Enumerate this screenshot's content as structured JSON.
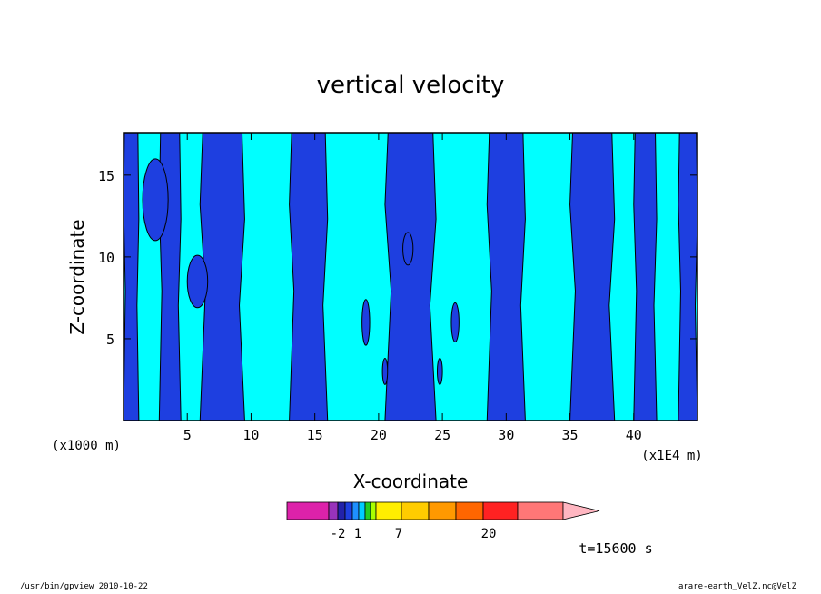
{
  "chart_data": {
    "type": "heatmap",
    "title": "vertical velocity",
    "xlabel": "X-coordinate",
    "ylabel": "Z-coordinate",
    "x_unit_left": "(x1000 m)",
    "x_unit_right": "(x1E4 m)",
    "xlim": [
      0,
      45
    ],
    "ylim": [
      0,
      17.6
    ],
    "x_ticks": [
      5,
      10,
      15,
      20,
      25,
      30,
      35,
      40
    ],
    "y_ticks": [
      5,
      10,
      15
    ],
    "time_label": "t=15600 s",
    "colorbar": {
      "levels_labeled": [
        "-2",
        "1",
        "7",
        "20"
      ],
      "colors": [
        "#dd22aa",
        "#9933bb",
        "#2222aa",
        "#1e3fe0",
        "#1e90ff",
        "#00ccff",
        "#22cc22",
        "#aaff00",
        "#ffee00",
        "#ffcc00",
        "#ff9900",
        "#ff6600",
        "#ff2222",
        "#ff7777",
        "#ffb6c1"
      ]
    },
    "columns_z_to_x": [
      {
        "from_x": 0.0,
        "to_x": 1.2,
        "color": "#1e3fe0"
      },
      {
        "from_x": 1.2,
        "to_x": 2.8,
        "color": "#00ffff"
      },
      {
        "from_x": 2.8,
        "to_x": 4.5,
        "color": "#1e3fe0"
      },
      {
        "from_x": 4.5,
        "to_x": 6.0,
        "color": "#00ffff"
      },
      {
        "from_x": 6.0,
        "to_x": 9.5,
        "color": "#1e3fe0"
      },
      {
        "from_x": 9.5,
        "to_x": 13.0,
        "color": "#00ffff"
      },
      {
        "from_x": 13.0,
        "to_x": 16.0,
        "color": "#1e3fe0"
      },
      {
        "from_x": 16.0,
        "to_x": 20.5,
        "color": "#00ffff"
      },
      {
        "from_x": 20.5,
        "to_x": 24.5,
        "color": "#1e3fe0"
      },
      {
        "from_x": 24.5,
        "to_x": 28.5,
        "color": "#00ffff"
      },
      {
        "from_x": 28.5,
        "to_x": 31.5,
        "color": "#1e3fe0"
      },
      {
        "from_x": 31.5,
        "to_x": 35.0,
        "color": "#00ffff"
      },
      {
        "from_x": 35.0,
        "to_x": 38.5,
        "color": "#1e3fe0"
      },
      {
        "from_x": 38.5,
        "to_x": 40.0,
        "color": "#00ffff"
      },
      {
        "from_x": 40.0,
        "to_x": 41.8,
        "color": "#1e3fe0"
      },
      {
        "from_x": 41.8,
        "to_x": 43.5,
        "color": "#00ffff"
      },
      {
        "from_x": 43.5,
        "to_x": 45.0,
        "color": "#1e3fe0"
      }
    ],
    "grid": false
  },
  "footer": {
    "left": "/usr/bin/gpview   2010-10-22",
    "right": "arare-earth_VelZ.nc@VelZ"
  }
}
